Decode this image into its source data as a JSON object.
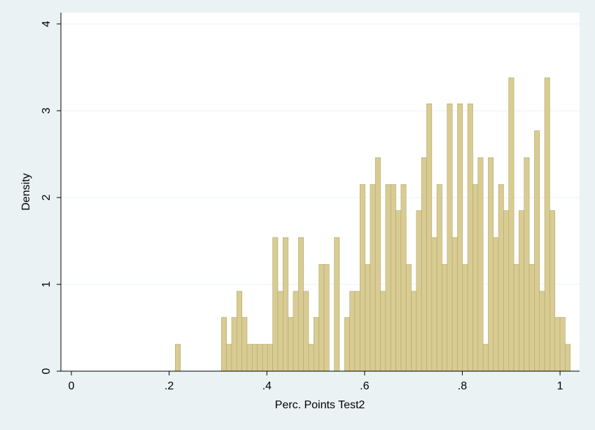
{
  "chart_data": {
    "type": "histogram",
    "xlabel": "Perc. Points Test2",
    "ylabel": "Density",
    "bins": [
      0.2125,
      0.223,
      0.2335,
      0.244,
      0.2545,
      0.265,
      0.2755,
      0.286,
      0.2965,
      0.307,
      0.3175,
      0.328,
      0.3385,
      0.349,
      0.3595,
      0.37,
      0.3805,
      0.391,
      0.4015,
      0.412,
      0.4225,
      0.433,
      0.4435,
      0.454,
      0.4645,
      0.475,
      0.4855,
      0.496,
      0.5065,
      0.517,
      0.5275,
      0.538,
      0.5485,
      0.559,
      0.5695,
      0.58,
      0.5905,
      0.601,
      0.6115,
      0.622,
      0.6325,
      0.643,
      0.6535,
      0.664,
      0.6745,
      0.685,
      0.6955,
      0.706,
      0.7165,
      0.727,
      0.7375,
      0.748,
      0.7585,
      0.769,
      0.7795,
      0.79,
      0.8005,
      0.811,
      0.8215,
      0.832,
      0.8425,
      0.853,
      0.8635,
      0.874,
      0.8845,
      0.895,
      0.9055,
      0.916,
      0.9265,
      0.937,
      0.9475,
      0.958,
      0.9685,
      0.979,
      0.9895,
      1.0,
      1.0105,
      1.021
    ],
    "values": [
      0.31,
      0,
      0,
      0,
      0,
      0,
      0,
      0,
      0,
      0.62,
      0.31,
      0.62,
      0.92,
      0.62,
      0.31,
      0.31,
      0.31,
      0.31,
      0.31,
      1.54,
      0.92,
      1.54,
      0.62,
      0.92,
      1.54,
      0.92,
      0.31,
      0.62,
      1.23,
      1.23,
      0,
      1.54,
      0,
      0.62,
      0.92,
      0.92,
      2.15,
      1.23,
      2.15,
      2.46,
      0.92,
      2.15,
      2.15,
      1.85,
      2.15,
      1.23,
      0.92,
      1.85,
      2.46,
      3.08,
      1.54,
      2.15,
      1.23,
      3.08,
      1.54,
      3.08,
      1.23,
      3.08,
      2.15,
      2.46,
      0.31,
      2.46,
      1.54,
      2.15,
      1.85,
      3.38,
      1.23,
      1.85,
      2.46,
      1.23,
      2.77,
      0.92,
      3.38,
      1.85,
      0.62,
      0.62,
      0.31
    ],
    "color": "#d8cc94",
    "edgecolor": "#b3a764",
    "xlim": [
      -0.0215,
      1.04
    ],
    "ylim": [
      0,
      4.13
    ],
    "xticks": [
      0,
      {
        "value": 0.2,
        "label": ".2"
      },
      {
        "value": 0.4,
        "label": ".4"
      },
      {
        "value": 0.6,
        "label": ".6"
      },
      {
        "value": 0.8,
        "label": ".8"
      },
      1
    ],
    "yticks": [
      0,
      1,
      2,
      3,
      4
    ],
    "grid": true
  }
}
